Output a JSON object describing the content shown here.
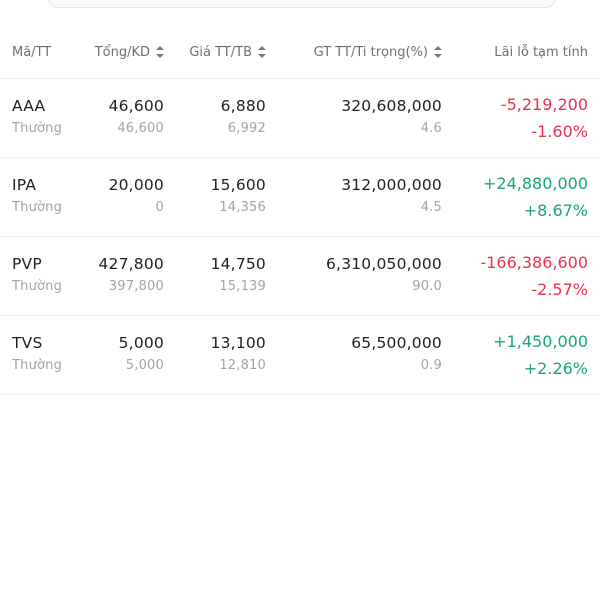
{
  "header": {
    "code": "Mã/TT",
    "volume": "Tổng/KD",
    "price": "Giá TT/TB",
    "value": "GT TT/Ti trọng(%)",
    "pl": "Lãi lỗ tạm tính"
  },
  "colors": {
    "negative": "#e8334d",
    "positive": "#1aa67a"
  },
  "rows": [
    {
      "code": "AAA",
      "type": "Thường",
      "total": "46,600",
      "available": "46,600",
      "market_price": "6,880",
      "avg_price": "6,992",
      "market_value": "320,608,000",
      "weight": "4.6",
      "pl_value": "-5,219,200",
      "pl_percent": "-1.60%",
      "direction": "negative"
    },
    {
      "code": "IPA",
      "type": "Thường",
      "total": "20,000",
      "available": "0",
      "market_price": "15,600",
      "avg_price": "14,356",
      "market_value": "312,000,000",
      "weight": "4.5",
      "pl_value": "+24,880,000",
      "pl_percent": "+8.67%",
      "direction": "positive"
    },
    {
      "code": "PVP",
      "type": "Thường",
      "total": "427,800",
      "available": "397,800",
      "market_price": "14,750",
      "avg_price": "15,139",
      "market_value": "6,310,050,000",
      "weight": "90.0",
      "pl_value": "-166,386,600",
      "pl_percent": "-2.57%",
      "direction": "negative"
    },
    {
      "code": "TVS",
      "type": "Thường",
      "total": "5,000",
      "available": "5,000",
      "market_price": "13,100",
      "avg_price": "12,810",
      "market_value": "65,500,000",
      "weight": "0.9",
      "pl_value": "+1,450,000",
      "pl_percent": "+2.26%",
      "direction": "positive"
    }
  ]
}
